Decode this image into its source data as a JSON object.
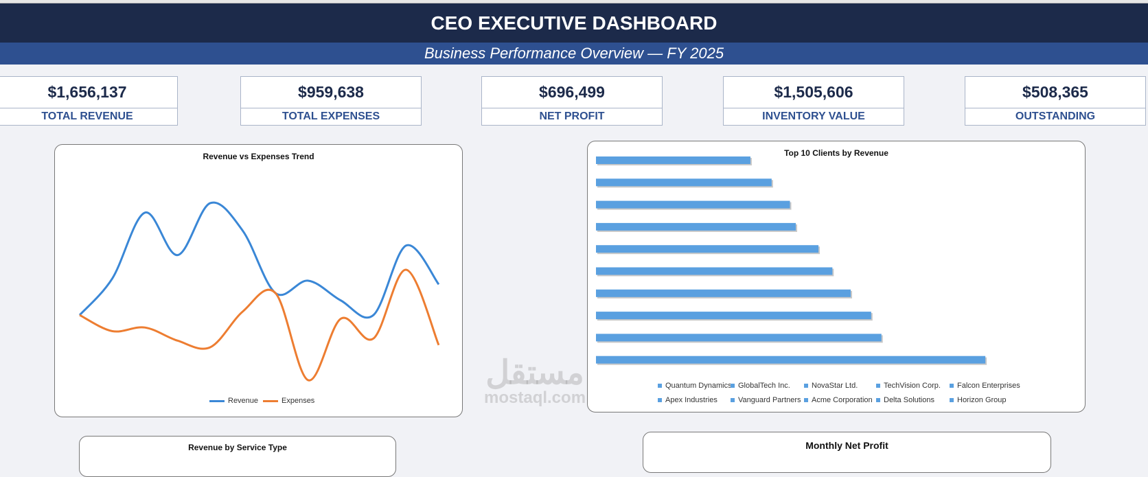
{
  "header": {
    "title": "CEO EXECUTIVE DASHBOARD",
    "subtitle": "Business Performance Overview — FY 2025"
  },
  "kpis": [
    {
      "value": "$1,656,137",
      "label": "TOTAL REVENUE"
    },
    {
      "value": "$959,638",
      "label": "TOTAL EXPENSES"
    },
    {
      "value": "$696,499",
      "label": "NET PROFIT"
    },
    {
      "value": "$1,505,606",
      "label": "INVENTORY VALUE"
    },
    {
      "value": "$508,365",
      "label": "OUTSTANDING"
    }
  ],
  "colors": {
    "title_bg": "#1c2a4a",
    "subtitle_bg": "#2e5090",
    "revenue": "#3a87d6",
    "expenses": "#ed7d31",
    "bar": "#5aa0e0"
  },
  "chart_data": [
    {
      "type": "line",
      "title": "Revenue vs Expenses Trend",
      "smooth": true,
      "x": [
        1,
        2,
        3,
        4,
        5,
        6,
        7,
        8,
        9,
        10,
        11,
        12
      ],
      "series": [
        {
          "name": "Revenue",
          "values": [
            90,
            140,
            230,
            172,
            243,
            205,
            120,
            137,
            110,
            90,
            185,
            132
          ]
        },
        {
          "name": "Expenses",
          "values": [
            90,
            68,
            73,
            55,
            46,
            95,
            120,
            1,
            85,
            58,
            152,
            49
          ]
        }
      ],
      "legend": "bottom",
      "grid": false
    },
    {
      "type": "bar",
      "orientation": "horizontal",
      "title": "Top 10 Clients by Revenue",
      "categories": [
        "Quantum Dynamics",
        "GlobalTech Inc.",
        "NovaStar Ltd.",
        "TechVision Corp.",
        "Falcon Enterprises",
        "Apex Industries",
        "Vanguard Partners",
        "Acme Corporation",
        "Delta Solutions",
        "Horizon Group"
      ],
      "values": [
        532,
        390,
        376,
        348,
        323,
        304,
        273,
        265,
        240,
        211
      ],
      "legend": "bottom",
      "grid": false
    }
  ],
  "bottom_cards": {
    "service": "Revenue by Service Type",
    "profit": "Monthly Net Profit"
  },
  "watermark": {
    "arabic": "مستقل",
    "latin": "mostaql.com"
  }
}
